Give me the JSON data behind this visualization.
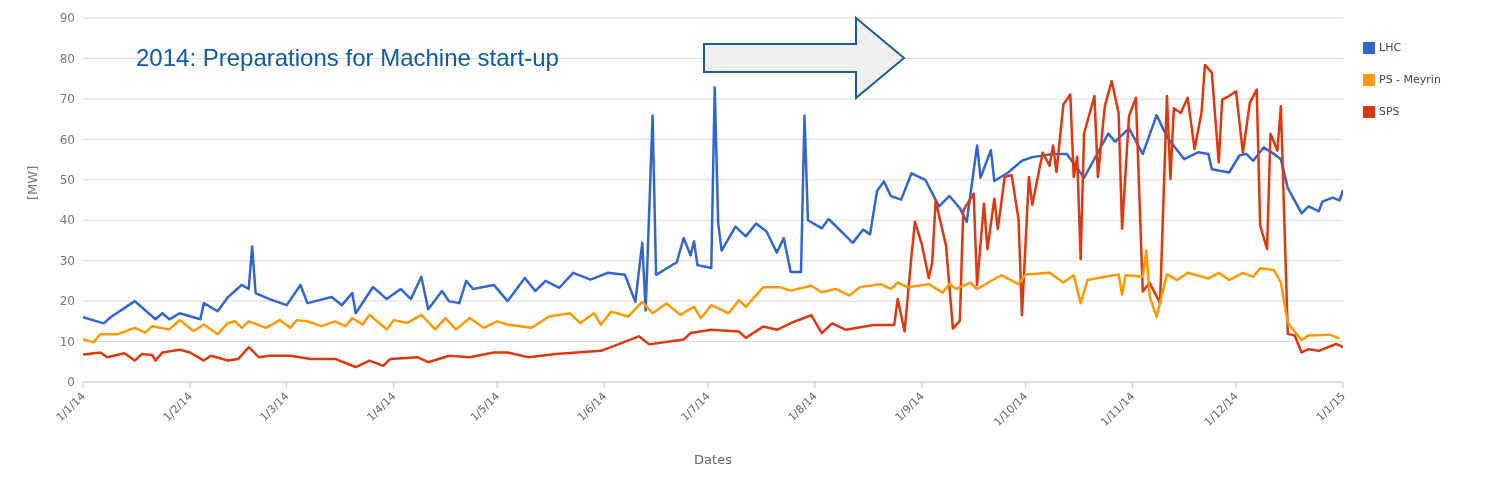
{
  "chart_data": {
    "type": "line",
    "xlabel": "Dates",
    "ylabel": "[MW]",
    "annotations": [
      "2014: Preparations for Machine start-up"
    ],
    "xlim": [
      "2014-01-01",
      "2015-01-01"
    ],
    "xticks": [
      {
        "value": "2014-01-01",
        "label": "1/1/14"
      },
      {
        "value": "2014-02-01",
        "label": "1/2/14"
      },
      {
        "value": "2014-03-01",
        "label": "1/3/14"
      },
      {
        "value": "2014-04-01",
        "label": "1/4/14"
      },
      {
        "value": "2014-05-01",
        "label": "1/5/14"
      },
      {
        "value": "2014-06-01",
        "label": "1/6/14"
      },
      {
        "value": "2014-07-01",
        "label": "1/7/14"
      },
      {
        "value": "2014-08-01",
        "label": "1/8/14"
      },
      {
        "value": "2014-09-01",
        "label": "1/9/14"
      },
      {
        "value": "2014-10-01",
        "label": "1/10/14"
      },
      {
        "value": "2014-11-01",
        "label": "1/11/14"
      },
      {
        "value": "2014-12-01",
        "label": "1/12/14"
      },
      {
        "value": "2015-01-01",
        "label": "1/1/15"
      }
    ],
    "ylim": [
      0,
      90
    ],
    "yticks": [
      0,
      10,
      20,
      30,
      40,
      50,
      60,
      70,
      80,
      90
    ],
    "grid": "y",
    "legend": "top right",
    "marker": "none",
    "line_style": "solid",
    "series": [
      {
        "name": "LHC",
        "color": "#3366cc",
        "x": [
          "2014-01-01",
          "2014-01-07",
          "2014-01-09",
          "2014-01-16",
          "2014-01-22",
          "2014-01-24",
          "2014-01-26",
          "2014-01-29",
          "2014-02-04",
          "2014-02-05",
          "2014-02-09",
          "2014-02-12",
          "2014-02-14",
          "2014-02-16",
          "2014-02-18",
          "2014-02-19",
          "2014-02-20",
          "2014-02-24",
          "2014-03-01",
          "2014-03-05",
          "2014-03-07",
          "2014-03-14",
          "2014-03-17",
          "2014-03-20",
          "2014-03-21",
          "2014-03-26",
          "2014-03-30",
          "2014-04-03",
          "2014-04-06",
          "2014-04-09",
          "2014-04-11",
          "2014-04-15",
          "2014-04-17",
          "2014-04-20",
          "2014-04-22",
          "2014-04-24",
          "2014-04-30",
          "2014-05-04",
          "2014-05-09",
          "2014-05-12",
          "2014-05-15",
          "2014-05-19",
          "2014-05-23",
          "2014-05-28",
          "2014-06-02",
          "2014-06-07",
          "2014-06-10",
          "2014-06-12",
          "2014-06-13",
          "2014-06-15",
          "2014-06-16",
          "2014-06-22",
          "2014-06-24",
          "2014-06-26",
          "2014-06-27",
          "2014-06-28",
          "2014-07-02",
          "2014-07-03",
          "2014-07-04",
          "2014-07-05",
          "2014-07-09",
          "2014-07-12",
          "2014-07-15",
          "2014-07-18",
          "2014-07-21",
          "2014-07-23",
          "2014-07-25",
          "2014-07-28",
          "2014-07-29",
          "2014-07-30",
          "2014-08-03",
          "2014-08-05",
          "2014-08-12",
          "2014-08-15",
          "2014-08-17",
          "2014-08-19",
          "2014-08-21",
          "2014-08-23",
          "2014-08-26",
          "2014-08-29",
          "2014-08-31",
          "2014-09-02",
          "2014-09-06",
          "2014-09-09",
          "2014-09-12",
          "2014-09-14",
          "2014-09-17",
          "2014-09-18",
          "2014-09-21",
          "2014-09-22",
          "2014-09-26",
          "2014-09-30",
          "2014-10-03",
          "2014-10-09",
          "2014-10-13",
          "2014-10-18",
          "2014-10-25",
          "2014-10-27",
          "2014-10-31",
          "2014-11-04",
          "2014-11-08",
          "2014-11-11",
          "2014-11-16",
          "2014-11-20",
          "2014-11-23",
          "2014-11-24",
          "2014-11-29",
          "2014-12-02",
          "2014-12-04",
          "2014-12-06",
          "2014-12-09",
          "2014-12-12",
          "2014-12-14",
          "2014-12-16",
          "2014-12-20",
          "2014-12-22",
          "2014-12-25",
          "2014-12-26",
          "2014-12-29",
          "2014-12-31",
          "2015-01-01"
        ],
        "values": [
          16,
          14.5,
          16,
          20,
          15.5,
          17,
          15.5,
          17,
          15.5,
          19.5,
          17.5,
          21,
          22.5,
          24,
          23,
          33.5,
          22,
          20.5,
          19,
          24,
          19.5,
          21,
          19,
          22,
          17,
          23.5,
          20.5,
          23,
          20.5,
          26,
          18,
          22.5,
          20,
          19.5,
          25,
          23,
          24,
          20,
          25.7,
          22.5,
          25,
          23.3,
          27,
          25.3,
          27,
          26.5,
          19.8,
          34.4,
          17.7,
          65.9,
          26.5,
          29.6,
          35.6,
          31.3,
          34.8,
          28.9,
          28.2,
          72.8,
          39.2,
          32.5,
          38.4,
          36,
          39.2,
          37.2,
          32,
          35.6,
          27.2,
          27.2,
          65.9,
          40,
          38,
          40.3,
          34.4,
          37.7,
          36.5,
          47.2,
          49.6,
          46,
          45.1,
          51.6,
          50.8,
          50,
          43.4,
          46,
          43,
          39.6,
          58.5,
          50.5,
          57.3,
          49.7,
          51.8,
          54.7,
          55.6,
          56.4,
          56.4,
          50.5,
          61.4,
          59.4,
          62.7,
          56.4,
          66,
          60.6,
          55.1,
          56.8,
          56.4,
          52.6,
          51.8,
          56,
          56.4,
          54.7,
          58,
          56.4,
          55.1,
          48,
          41.7,
          43.4,
          42.2,
          44.6,
          45.6,
          44.9,
          47.5
        ]
      },
      {
        "name": "SPS",
        "color": "#dc3912",
        "x": [
          "2014-01-01",
          "2014-01-06",
          "2014-01-08",
          "2014-01-13",
          "2014-01-16",
          "2014-01-18",
          "2014-01-21",
          "2014-01-22",
          "2014-01-24",
          "2014-01-29",
          "2014-02-01",
          "2014-02-05",
          "2014-02-07",
          "2014-02-12",
          "2014-02-15",
          "2014-02-18",
          "2014-02-21",
          "2014-02-24",
          "2014-03-02",
          "2014-03-08",
          "2014-03-15",
          "2014-03-21",
          "2014-03-25",
          "2014-03-29",
          "2014-03-31",
          "2014-04-08",
          "2014-04-11",
          "2014-04-17",
          "2014-04-23",
          "2014-04-30",
          "2014-05-04",
          "2014-05-10",
          "2014-05-18",
          "2014-05-31",
          "2014-06-05",
          "2014-06-11",
          "2014-06-14",
          "2014-06-24",
          "2014-06-26",
          "2014-07-02",
          "2014-07-10",
          "2014-07-12",
          "2014-07-17",
          "2014-07-21",
          "2014-07-26",
          "2014-07-31",
          "2014-08-03",
          "2014-08-06",
          "2014-08-10",
          "2014-08-18",
          "2014-08-24",
          "2014-08-25",
          "2014-08-27",
          "2014-08-29",
          "2014-08-30",
          "2014-09-01",
          "2014-09-03",
          "2014-09-04",
          "2014-09-05",
          "2014-09-08",
          "2014-09-10",
          "2014-09-12",
          "2014-09-13",
          "2014-09-16",
          "2014-09-17",
          "2014-09-19",
          "2014-09-20",
          "2014-09-22",
          "2014-09-23",
          "2014-09-25",
          "2014-09-27",
          "2014-09-29",
          "2014-09-30",
          "2014-10-02",
          "2014-10-03",
          "2014-10-06",
          "2014-10-08",
          "2014-10-09",
          "2014-10-10",
          "2014-10-12",
          "2014-10-14",
          "2014-10-15",
          "2014-10-16",
          "2014-10-17",
          "2014-10-18",
          "2014-10-21",
          "2014-10-22",
          "2014-10-24",
          "2014-10-26",
          "2014-10-28",
          "2014-10-29",
          "2014-10-31",
          "2014-11-02",
          "2014-11-04",
          "2014-11-06",
          "2014-11-09",
          "2014-11-11",
          "2014-11-12",
          "2014-11-13",
          "2014-11-15",
          "2014-11-17",
          "2014-11-19",
          "2014-11-21",
          "2014-11-22",
          "2014-11-24",
          "2014-11-26",
          "2014-11-27",
          "2014-11-29",
          "2014-12-01",
          "2014-12-03",
          "2014-12-05",
          "2014-12-07",
          "2014-12-08",
          "2014-12-10",
          "2014-12-11",
          "2014-12-13",
          "2014-12-14",
          "2014-12-16",
          "2014-12-18",
          "2014-12-20",
          "2014-12-22",
          "2014-12-25",
          "2014-12-30",
          "2015-01-01"
        ],
        "values": [
          6.8,
          7.3,
          6.1,
          7.1,
          5.3,
          6.9,
          6.7,
          5.3,
          7.3,
          8,
          7.3,
          5.3,
          6.5,
          5.3,
          5.7,
          8.6,
          6.1,
          6.5,
          6.5,
          5.7,
          5.7,
          3.7,
          5.3,
          4,
          5.7,
          6.1,
          4.9,
          6.5,
          6.1,
          7.3,
          7.3,
          6.1,
          6.9,
          7.7,
          9.3,
          11.3,
          9.3,
          10.5,
          12.1,
          12.9,
          12.5,
          10.9,
          13.7,
          12.9,
          14.9,
          16.5,
          12.1,
          14.5,
          12.9,
          14.1,
          14.1,
          20.5,
          12.5,
          31.2,
          39.6,
          34,
          25.7,
          29.6,
          44.8,
          33.7,
          13.2,
          15.1,
          42.4,
          46.6,
          24,
          44.1,
          32.8,
          45.3,
          37.8,
          50.7,
          51.2,
          40.3,
          16.5,
          50.7,
          43.8,
          56.7,
          53.5,
          58.5,
          51.9,
          68.6,
          71.1,
          50.7,
          55.7,
          30.4,
          61.5,
          70.7,
          50.7,
          68.2,
          74.4,
          66.5,
          37.9,
          65.7,
          70.3,
          22.4,
          24.5,
          19.5,
          70.7,
          50.2,
          67.7,
          66.5,
          70.3,
          57.6,
          66.5,
          78.4,
          76.5,
          54.3,
          69.8,
          70.7,
          71.9,
          56.7,
          69,
          72.3,
          38.7,
          32.9,
          61.4,
          57.2,
          68.2,
          11.9,
          11.5,
          7.3,
          8.1,
          7.7,
          9.4,
          8.6
        ]
      },
      {
        "name": "PS - Meyrin",
        "color": "#ff9900",
        "x": [
          "2014-01-01",
          "2014-01-04",
          "2014-01-06",
          "2014-01-11",
          "2014-01-16",
          "2014-01-19",
          "2014-01-21",
          "2014-01-26",
          "2014-01-29",
          "2014-02-02",
          "2014-02-05",
          "2014-02-09",
          "2014-02-12",
          "2014-02-14",
          "2014-02-16",
          "2014-02-18",
          "2014-02-23",
          "2014-02-27",
          "2014-03-02",
          "2014-03-04",
          "2014-03-07",
          "2014-03-11",
          "2014-03-15",
          "2014-03-18",
          "2014-03-20",
          "2014-03-23",
          "2014-03-25",
          "2014-03-30",
          "2014-04-01",
          "2014-04-05",
          "2014-04-09",
          "2014-04-13",
          "2014-04-16",
          "2014-04-19",
          "2014-04-23",
          "2014-04-27",
          "2014-05-01",
          "2014-05-04",
          "2014-05-11",
          "2014-05-16",
          "2014-05-22",
          "2014-05-25",
          "2014-05-29",
          "2014-05-31",
          "2014-06-03",
          "2014-06-08",
          "2014-06-12",
          "2014-06-15",
          "2014-06-19",
          "2014-06-23",
          "2014-06-27",
          "2014-06-29",
          "2014-07-02",
          "2014-07-07",
          "2014-07-10",
          "2014-07-12",
          "2014-07-17",
          "2014-07-22",
          "2014-07-25",
          "2014-07-31",
          "2014-08-03",
          "2014-08-07",
          "2014-08-11",
          "2014-08-14",
          "2014-08-20",
          "2014-08-23",
          "2014-08-25",
          "2014-08-28",
          "2014-09-03",
          "2014-09-07",
          "2014-09-09",
          "2014-09-11",
          "2014-09-15",
          "2014-09-17",
          "2014-09-24",
          "2014-09-29",
          "2014-10-01",
          "2014-10-08",
          "2014-10-12",
          "2014-10-15",
          "2014-10-17",
          "2014-10-19",
          "2014-10-24",
          "2014-10-28",
          "2014-10-29",
          "2014-10-30",
          "2014-11-04",
          "2014-11-05",
          "2014-11-06",
          "2014-11-08",
          "2014-11-11",
          "2014-11-14",
          "2014-11-17",
          "2014-11-23",
          "2014-11-26",
          "2014-11-29",
          "2014-12-03",
          "2014-12-06",
          "2014-12-08",
          "2014-12-12",
          "2014-12-14",
          "2014-12-16",
          "2014-12-20",
          "2014-12-22",
          "2014-12-28",
          "2014-12-31"
        ],
        "values": [
          10.6,
          9.8,
          11.8,
          11.8,
          13.4,
          12.2,
          13.8,
          13,
          15.3,
          12.6,
          14.2,
          11.8,
          14.6,
          15,
          13.4,
          15,
          13.4,
          15.3,
          13.4,
          15.3,
          15,
          13.8,
          15,
          13.8,
          15.8,
          14.2,
          16.6,
          13,
          15.3,
          14.6,
          16.6,
          13,
          15.8,
          13,
          15.8,
          13.4,
          15,
          14.2,
          13.4,
          16.2,
          17,
          14.6,
          17,
          14.2,
          17.4,
          16.2,
          19.8,
          17,
          19.4,
          16.6,
          18.6,
          15.8,
          19,
          17,
          20.2,
          18.6,
          23.4,
          23.4,
          22.6,
          23.8,
          22.2,
          23,
          21.4,
          23.4,
          24.2,
          23,
          24.6,
          23.4,
          24.2,
          22.1,
          24.2,
          23,
          24.6,
          23,
          26.4,
          24.2,
          26.6,
          27,
          24.6,
          26.4,
          19.5,
          25.2,
          26,
          26.6,
          21.6,
          26.4,
          26,
          32.5,
          21.1,
          16.1,
          26.6,
          25.2,
          27,
          25.6,
          27,
          25.2,
          27,
          26,
          28.1,
          27.7,
          24.6,
          14.6,
          10.4,
          11.5,
          11.7,
          10.8
        ]
      }
    ]
  }
}
